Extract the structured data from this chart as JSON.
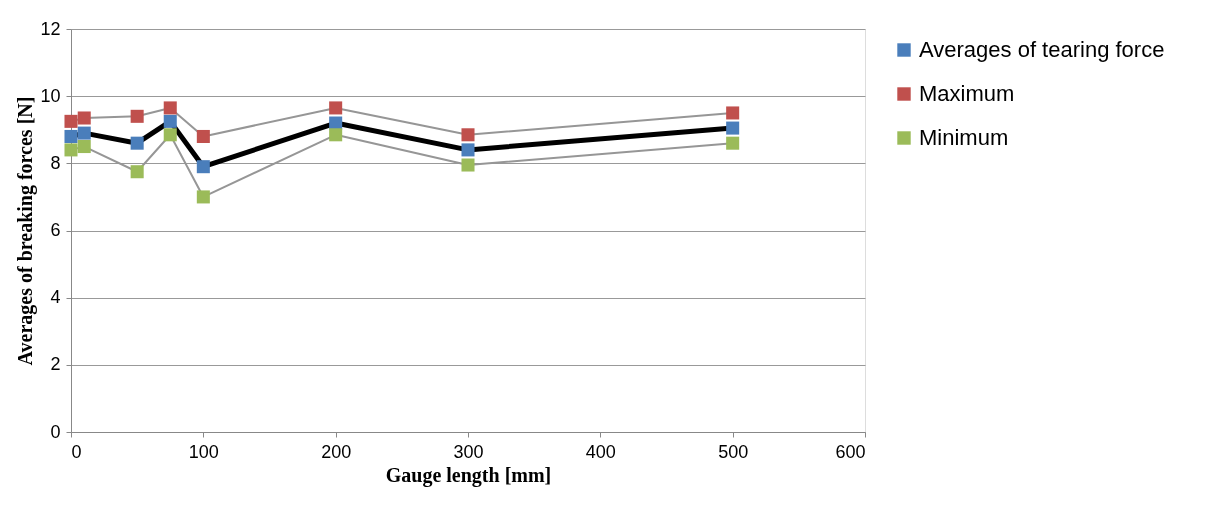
{
  "chart_data": {
    "type": "line",
    "xlabel": "Gauge length [mm]",
    "ylabel": "Averages of breaking forces [N]",
    "x": [
      0,
      10,
      50,
      75,
      100,
      200,
      300,
      500
    ],
    "series": [
      {
        "name": "Averages of tearing force",
        "color": "#4a7ebb",
        "values": [
          8.8,
          8.9,
          8.6,
          9.25,
          7.9,
          9.2,
          8.4,
          9.05
        ]
      },
      {
        "name": "Maximum",
        "color": "#c0504d",
        "values": [
          9.25,
          9.35,
          9.4,
          9.65,
          8.8,
          9.65,
          8.85,
          9.5
        ]
      },
      {
        "name": "Minimum",
        "color": "#9bbb59",
        "values": [
          8.4,
          8.5,
          7.75,
          8.85,
          7.0,
          8.85,
          7.95,
          8.6
        ]
      }
    ],
    "xlim": [
      0,
      600
    ],
    "xticks": [
      0,
      100,
      200,
      300,
      400,
      500,
      600
    ],
    "ylim": [
      0,
      12
    ],
    "yticks": [
      0,
      2,
      4,
      6,
      8,
      10,
      12
    ],
    "grid": "y",
    "legend": "right",
    "marker": "square",
    "line_style": "solid"
  }
}
